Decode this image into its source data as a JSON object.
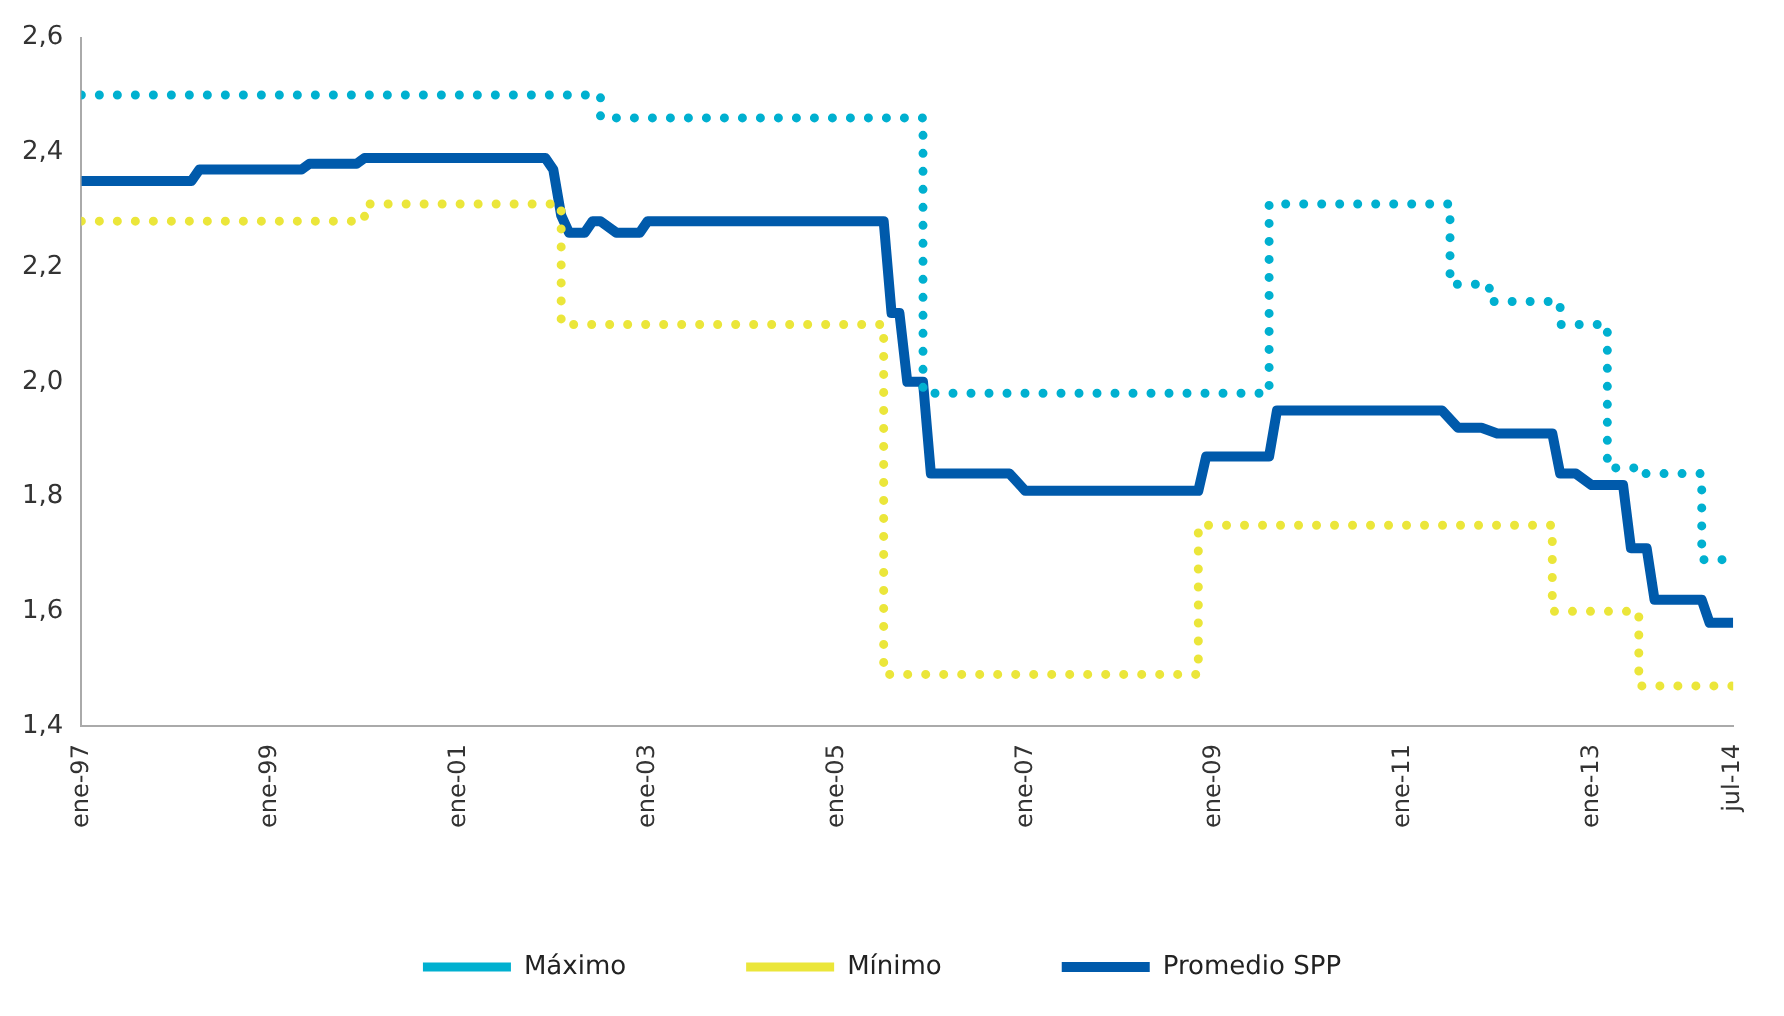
{
  "chart_data": {
    "type": "line",
    "xlim": [
      "1997-01",
      "2014-07"
    ],
    "xticks": [
      {
        "value": "1997-01",
        "label": "ene-97"
      },
      {
        "value": "1999-01",
        "label": "ene-99"
      },
      {
        "value": "2001-01",
        "label": "ene-01"
      },
      {
        "value": "2003-01",
        "label": "ene-03"
      },
      {
        "value": "2005-01",
        "label": "ene-05"
      },
      {
        "value": "2007-01",
        "label": "ene-07"
      },
      {
        "value": "2009-01",
        "label": "ene-09"
      },
      {
        "value": "2011-01",
        "label": "ene-11"
      },
      {
        "value": "2013-01",
        "label": "ene-13"
      },
      {
        "value": "2014-07",
        "label": "jul-14"
      }
    ],
    "ylim": [
      1.4,
      2.6
    ],
    "yticks": [
      {
        "value": 1.4,
        "label": "1,4"
      },
      {
        "value": 1.6,
        "label": "1,6"
      },
      {
        "value": 1.8,
        "label": "1,8"
      },
      {
        "value": 2.0,
        "label": "2,0"
      },
      {
        "value": 2.2,
        "label": "2,2"
      },
      {
        "value": 2.4,
        "label": "2,4"
      },
      {
        "value": 2.6,
        "label": "2,6"
      }
    ],
    "grid": false,
    "legend": "bottom",
    "series": [
      {
        "name": "Máximo",
        "type": "step",
        "line_style": "dotted",
        "color": "#00b0d0",
        "x": [
          "1997-01",
          "2002-07",
          "2005-12",
          "2009-08",
          "2011-07",
          "2011-12",
          "2012-09",
          "2013-03",
          "2013-07",
          "2014-03",
          "2014-07"
        ],
        "values": [
          2.5,
          2.46,
          1.98,
          2.31,
          2.17,
          2.14,
          2.1,
          1.85,
          1.84,
          1.69,
          1.69
        ]
      },
      {
        "name": "Mínimo",
        "type": "step",
        "line_style": "dotted",
        "color": "#ebe63a",
        "x": [
          "1997-01",
          "2000-01",
          "2002-02",
          "2005-07",
          "2008-11",
          "2012-08",
          "2013-07",
          "2014-07"
        ],
        "values": [
          2.28,
          2.31,
          2.1,
          1.49,
          1.75,
          1.6,
          1.47,
          1.47
        ]
      },
      {
        "name": "Promedio SPP",
        "type": "line",
        "line_style": "solid",
        "color": "#005aab",
        "x": [
          "1997-01",
          "1998-03",
          "1998-04",
          "1999-05",
          "1999-06",
          "1999-12",
          "2000-01",
          "2001-12",
          "2002-01",
          "2002-02",
          "2002-03",
          "2002-05",
          "2002-06",
          "2002-07",
          "2002-09",
          "2002-12",
          "2003-01",
          "2005-07",
          "2005-08",
          "2005-09",
          "2005-10",
          "2005-12",
          "2006-01",
          "2006-11",
          "2007-01",
          "2008-11",
          "2008-12",
          "2009-08",
          "2009-09",
          "2011-06",
          "2011-08",
          "2011-11",
          "2012-01",
          "2012-08",
          "2012-09",
          "2012-11",
          "2013-01",
          "2013-05",
          "2013-06",
          "2013-08",
          "2013-09",
          "2014-03",
          "2014-04",
          "2014-07"
        ],
        "values": [
          2.35,
          2.35,
          2.37,
          2.37,
          2.38,
          2.38,
          2.39,
          2.39,
          2.37,
          2.29,
          2.26,
          2.26,
          2.28,
          2.28,
          2.26,
          2.26,
          2.28,
          2.28,
          2.12,
          2.12,
          2.0,
          2.0,
          1.84,
          1.84,
          1.81,
          1.81,
          1.87,
          1.87,
          1.95,
          1.95,
          1.92,
          1.92,
          1.91,
          1.91,
          1.84,
          1.84,
          1.82,
          1.82,
          1.71,
          1.71,
          1.62,
          1.62,
          1.58,
          1.58
        ]
      }
    ]
  }
}
